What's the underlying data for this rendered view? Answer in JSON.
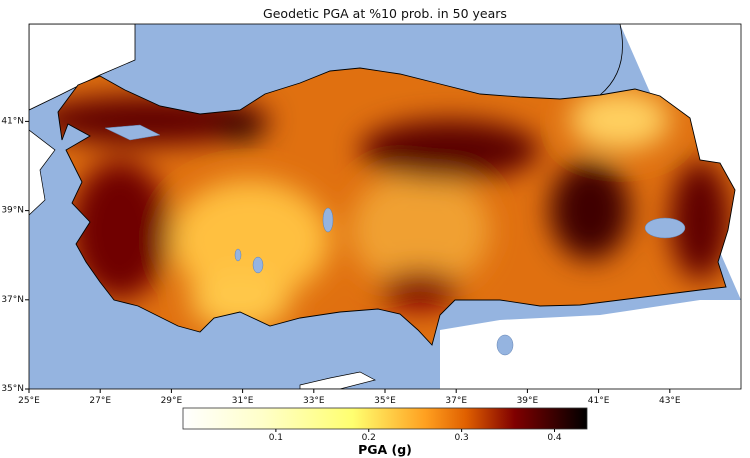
{
  "title": "Geodetic PGA at %10 prob. in 50 years",
  "map": {
    "longitude_ticks": [
      "25°E",
      "27°E",
      "29°E",
      "31°E",
      "33°E",
      "35°E",
      "37°E",
      "39°E",
      "41°E",
      "43°E"
    ],
    "latitude_ticks": [
      "35°N",
      "37°N",
      "39°N",
      "41°N"
    ],
    "extent": {
      "lon": [
        25,
        45
      ],
      "lat": [
        35,
        43
      ]
    },
    "colors": {
      "sea": "#95b4e0",
      "land_outside": "#ffffff"
    }
  },
  "colorbar": {
    "label": "PGA (g)",
    "colormap": "afmhot_r",
    "range": [
      0.0,
      0.435
    ],
    "ticks": [
      "0.1",
      "0.2",
      "0.3",
      "0.4"
    ],
    "tick_values": [
      0.1,
      0.2,
      0.3,
      0.4
    ]
  }
}
